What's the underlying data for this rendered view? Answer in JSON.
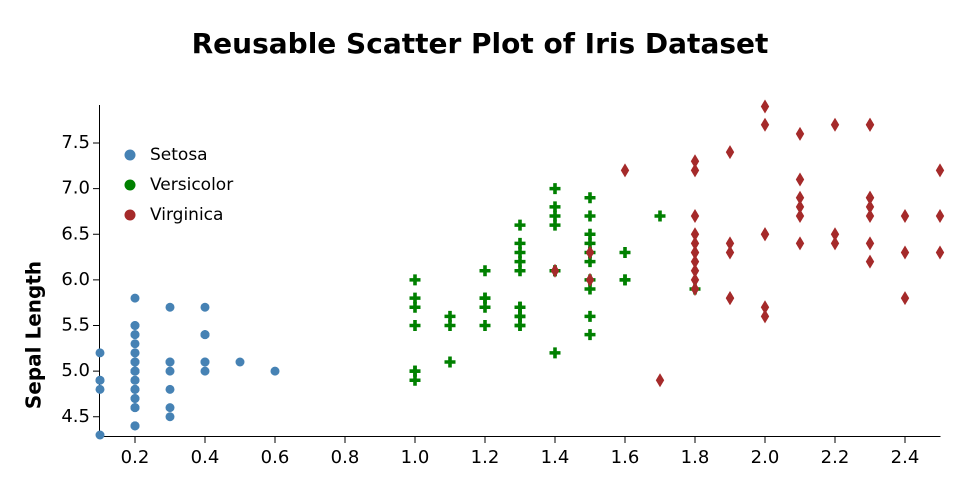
{
  "chart_data": {
    "type": "scatter",
    "title": "Reusable Scatter Plot of Iris Dataset",
    "y_label": "Sepal Length",
    "xlim": [
      0.1,
      2.5
    ],
    "ylim": [
      4.3,
      7.9
    ],
    "xticks": [
      0.2,
      0.4,
      0.6,
      0.8,
      {
        "value": 1,
        "label": "1.0"
      },
      1.2,
      1.4,
      1.6,
      1.8,
      {
        "value": 2,
        "label": "2.0"
      },
      2.2,
      2.4
    ],
    "yticks": [
      4.5,
      {
        "value": 5,
        "label": "5.0"
      },
      5.5,
      {
        "value": 6,
        "label": "6.0"
      },
      6.5,
      {
        "value": 7,
        "label": "7.0"
      },
      7.5
    ],
    "legend": "top-left",
    "series": [
      {
        "name": "Setosa",
        "color": "#4682b4",
        "marker": "circle",
        "x": [
          0.2,
          0.2,
          0.2,
          0.2,
          0.2,
          0.4,
          0.3,
          0.2,
          0.2,
          0.1,
          0.2,
          0.2,
          0.1,
          0.1,
          0.2,
          0.4,
          0.4,
          0.3,
          0.3,
          0.3,
          0.2,
          0.4,
          0.2,
          0.5,
          0.2,
          0.2,
          0.4,
          0.2,
          0.2,
          0.2,
          0.2,
          0.4,
          0.1,
          0.2,
          0.2,
          0.2,
          0.2,
          0.1,
          0.2,
          0.2,
          0.3,
          0.3,
          0.2,
          0.6,
          0.4,
          0.3,
          0.2,
          0.2,
          0.2,
          0.2
        ],
        "values": [
          5.1,
          4.9,
          4.7,
          4.6,
          5.0,
          5.4,
          4.6,
          5.0,
          4.4,
          4.9,
          5.4,
          4.8,
          4.8,
          4.3,
          5.8,
          5.7,
          5.4,
          5.1,
          5.7,
          5.1,
          5.4,
          5.1,
          4.6,
          5.1,
          4.8,
          5.0,
          5.0,
          5.2,
          5.2,
          4.7,
          4.8,
          5.4,
          5.2,
          5.5,
          4.9,
          5.0,
          5.5,
          4.9,
          4.4,
          5.1,
          5.0,
          4.5,
          4.4,
          5.0,
          5.1,
          4.8,
          5.1,
          4.6,
          5.3,
          5.0
        ]
      },
      {
        "name": "Versicolor",
        "color": "#008000",
        "marker": "cross",
        "x": [
          1.4,
          1.5,
          1.5,
          1.3,
          1.5,
          1.3,
          1.6,
          1.0,
          1.3,
          1.4,
          1.0,
          1.5,
          1.0,
          1.4,
          1.3,
          1.4,
          1.5,
          1.0,
          1.5,
          1.1,
          1.8,
          1.3,
          1.5,
          1.2,
          1.3,
          1.4,
          1.4,
          1.7,
          1.5,
          1.0,
          1.1,
          1.0,
          1.2,
          1.6,
          1.5,
          1.6,
          1.5,
          1.3,
          1.3,
          1.3,
          1.2,
          1.4,
          1.2,
          1.0,
          1.3,
          1.2,
          1.3,
          1.3,
          1.1,
          1.3
        ],
        "values": [
          7.0,
          6.4,
          6.9,
          5.5,
          6.5,
          5.7,
          6.3,
          4.9,
          6.6,
          5.2,
          5.0,
          5.9,
          6.0,
          6.1,
          5.6,
          6.7,
          5.6,
          5.8,
          6.2,
          5.6,
          5.9,
          6.1,
          6.3,
          6.1,
          6.4,
          6.6,
          6.8,
          6.7,
          6.0,
          5.7,
          5.5,
          5.5,
          5.8,
          6.0,
          5.4,
          6.0,
          6.7,
          6.3,
          5.6,
          5.5,
          5.5,
          6.1,
          5.8,
          5.0,
          5.6,
          5.7,
          5.7,
          6.2,
          5.1,
          5.7
        ]
      },
      {
        "name": "Virginica",
        "color": "#a52a2a",
        "marker": "diamond",
        "x": [
          2.5,
          1.9,
          2.1,
          1.8,
          2.2,
          2.1,
          1.7,
          1.8,
          1.8,
          2.5,
          2.0,
          1.9,
          2.1,
          2.0,
          2.4,
          2.3,
          1.8,
          2.2,
          2.3,
          1.5,
          2.3,
          2.0,
          2.0,
          1.8,
          2.1,
          1.8,
          1.8,
          1.8,
          2.1,
          1.6,
          1.9,
          2.0,
          2.2,
          1.5,
          1.4,
          2.3,
          2.4,
          1.8,
          1.8,
          2.1,
          2.4,
          2.3,
          1.9,
          2.3,
          2.5,
          2.3,
          1.9,
          2.0,
          2.3,
          1.8
        ],
        "values": [
          6.3,
          5.8,
          7.1,
          6.3,
          6.5,
          7.6,
          4.9,
          7.3,
          6.7,
          7.2,
          6.5,
          6.4,
          6.8,
          5.7,
          5.8,
          6.4,
          6.5,
          7.7,
          7.7,
          6.0,
          6.9,
          5.6,
          7.7,
          6.3,
          6.7,
          7.2,
          6.2,
          6.1,
          6.4,
          7.2,
          7.4,
          7.9,
          6.4,
          6.3,
          6.1,
          7.7,
          6.3,
          6.4,
          6.0,
          6.9,
          6.7,
          6.9,
          5.8,
          6.8,
          6.7,
          6.7,
          6.3,
          6.5,
          6.2,
          5.9
        ]
      }
    ]
  }
}
